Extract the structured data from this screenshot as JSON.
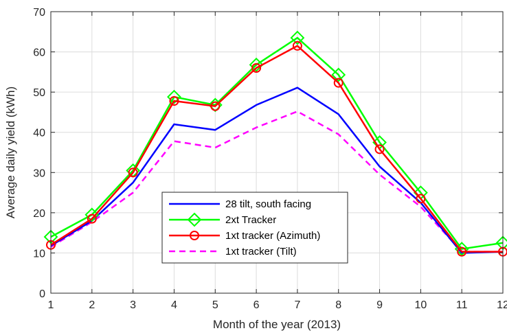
{
  "chart_data": {
    "type": "line",
    "xlabel": "Month of the year (2013)",
    "ylabel": "Average daily yield (kWh)",
    "x": [
      1,
      2,
      3,
      4,
      5,
      6,
      7,
      8,
      9,
      10,
      11,
      12
    ],
    "xlim": [
      1,
      12
    ],
    "ylim": [
      0,
      70
    ],
    "xticks": [
      1,
      2,
      3,
      4,
      5,
      6,
      7,
      8,
      9,
      10,
      11,
      12
    ],
    "yticks": [
      0,
      10,
      20,
      30,
      40,
      50,
      60,
      70
    ],
    "grid": true,
    "legend_position": "lower-center",
    "series": [
      {
        "name": "28 tilt, south facing",
        "color": "#0000ff",
        "line_style": "solid",
        "marker": "none",
        "values": [
          11.8,
          18.0,
          27.5,
          42.0,
          40.6,
          46.8,
          51.1,
          44.5,
          31.5,
          22.5,
          10.0,
          10.3
        ]
      },
      {
        "name": "2xt Tracker",
        "color": "#00ff00",
        "line_style": "solid",
        "marker": "diamond",
        "values": [
          14.0,
          19.5,
          30.5,
          48.8,
          46.8,
          56.8,
          63.5,
          54.3,
          37.5,
          25.0,
          11.0,
          12.5
        ]
      },
      {
        "name": "1xt tracker (Azimuth)",
        "color": "#ff0000",
        "line_style": "solid",
        "marker": "circle",
        "values": [
          12.0,
          18.5,
          30.0,
          47.8,
          46.5,
          56.0,
          61.5,
          52.3,
          35.8,
          23.5,
          10.3,
          10.3
        ]
      },
      {
        "name": "1xt tracker (Tilt)",
        "color": "#ff00ff",
        "line_style": "dashed",
        "marker": "none",
        "values": [
          11.5,
          17.7,
          25.0,
          37.8,
          36.2,
          41.2,
          45.2,
          39.5,
          29.5,
          21.5,
          10.3,
          10.3
        ]
      }
    ]
  }
}
